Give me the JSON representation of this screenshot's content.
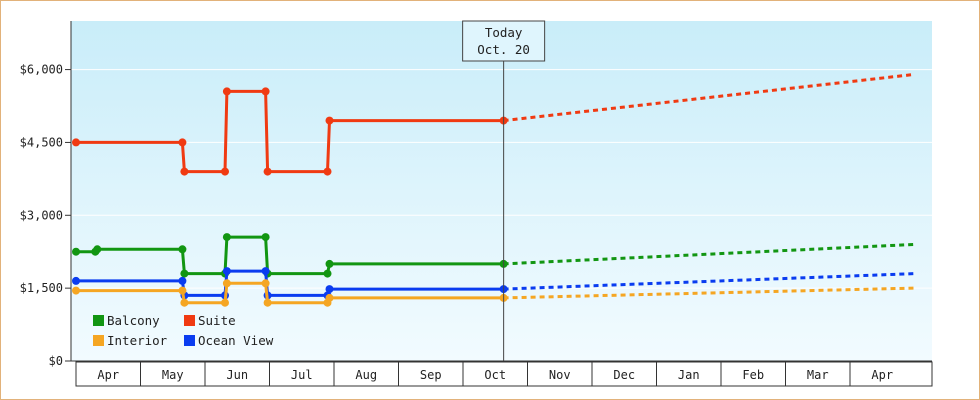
{
  "chart_data": {
    "type": "line",
    "title": "",
    "xlabel": "",
    "ylabel": "",
    "ylim": [
      0,
      7000
    ],
    "y_ticks": [
      "$0",
      "$1,500",
      "$3,000",
      "$4,500",
      "$6,000"
    ],
    "y_tick_values": [
      0,
      1500,
      3000,
      4500,
      6000
    ],
    "x_ticks": [
      "Apr",
      "May",
      "Jun",
      "Jul",
      "Aug",
      "Sep",
      "Oct",
      "Nov",
      "Dec",
      "Jan",
      "Feb",
      "Mar",
      "Apr"
    ],
    "line_style": "step",
    "today": {
      "label_line1": "Today",
      "label_line2": "Oct. 20"
    },
    "legend_placement": "bottom-left",
    "background": {
      "top": "#c9edf9",
      "bottom": "#f2fbff"
    },
    "series": [
      {
        "name": "Suite",
        "color": "#f03a12",
        "history": [
          [
            0,
            4500
          ],
          [
            1.65,
            4500
          ],
          [
            1.68,
            3900
          ],
          [
            2.31,
            3900
          ],
          [
            2.34,
            5550
          ],
          [
            2.94,
            5550
          ],
          [
            2.97,
            3900
          ],
          [
            3.9,
            3900
          ],
          [
            3.93,
            4950
          ],
          [
            6.63,
            4950
          ]
        ],
        "forecast": [
          [
            6.63,
            4950
          ],
          [
            13,
            5900
          ]
        ]
      },
      {
        "name": "Balcony",
        "color": "#129612",
        "history": [
          [
            0,
            2250
          ],
          [
            0.3,
            2250
          ],
          [
            0.33,
            2300
          ],
          [
            1.65,
            2300
          ],
          [
            1.68,
            1800
          ],
          [
            2.31,
            1800
          ],
          [
            2.34,
            2550
          ],
          [
            2.94,
            2550
          ],
          [
            2.97,
            1800
          ],
          [
            3.9,
            1800
          ],
          [
            3.93,
            2000
          ],
          [
            6.63,
            2000
          ]
        ],
        "forecast": [
          [
            6.63,
            2000
          ],
          [
            13,
            2400
          ]
        ]
      },
      {
        "name": "Ocean View",
        "color": "#0a3cf0",
        "history": [
          [
            0,
            1650
          ],
          [
            1.65,
            1650
          ],
          [
            1.68,
            1350
          ],
          [
            2.31,
            1350
          ],
          [
            2.34,
            1850
          ],
          [
            2.94,
            1850
          ],
          [
            2.97,
            1350
          ],
          [
            3.9,
            1350
          ],
          [
            3.93,
            1480
          ],
          [
            6.63,
            1480
          ]
        ],
        "forecast": [
          [
            6.63,
            1480
          ],
          [
            13,
            1800
          ]
        ]
      },
      {
        "name": "Interior",
        "color": "#f5a623",
        "history": [
          [
            0,
            1450
          ],
          [
            1.65,
            1450
          ],
          [
            1.68,
            1200
          ],
          [
            2.31,
            1200
          ],
          [
            2.34,
            1600
          ],
          [
            2.94,
            1600
          ],
          [
            2.97,
            1200
          ],
          [
            3.9,
            1200
          ],
          [
            3.93,
            1300
          ],
          [
            6.63,
            1300
          ]
        ],
        "forecast": [
          [
            6.63,
            1300
          ],
          [
            13,
            1500
          ]
        ]
      }
    ],
    "legend": [
      {
        "name": "Balcony",
        "color": "#129612"
      },
      {
        "name": "Suite",
        "color": "#f03a12"
      },
      {
        "name": "Interior",
        "color": "#f5a623"
      },
      {
        "name": "Ocean View",
        "color": "#0a3cf0"
      }
    ]
  }
}
